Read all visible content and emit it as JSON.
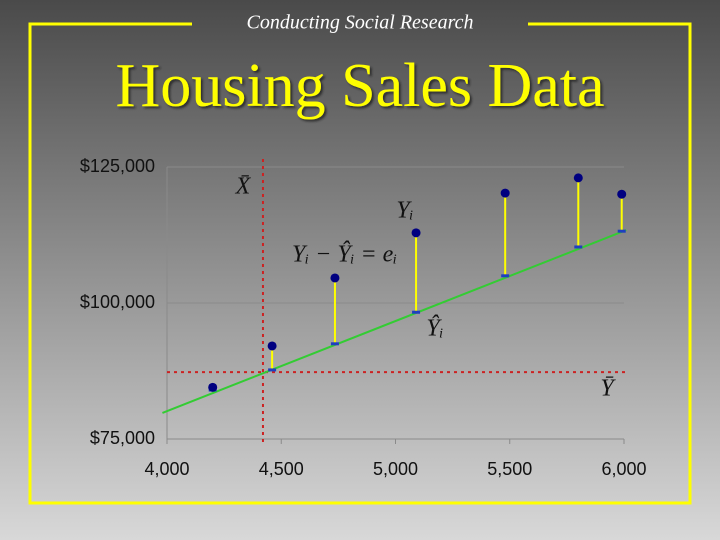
{
  "chart_data": {
    "type": "scatter",
    "subtitle": "Conducting Social Research",
    "title": "Housing Sales Data",
    "x": [
      4200,
      4460,
      4735,
      5090,
      5480,
      5800,
      5990
    ],
    "series": [
      {
        "color": "#000080",
        "values": [
          84500,
          92100,
          104600,
          112900,
          120200,
          123000,
          120000
        ]
      },
      {
        "color": "#1f3fbf",
        "values": [
          84000,
          87700,
          92500,
          98300,
          105000,
          110300,
          113200
        ]
      }
    ],
    "residual_color": "#ffff00",
    "fit_line": {
      "x": [
        3980,
        6010
      ],
      "values": [
        79800,
        113400
      ],
      "color": "#33cc33"
    },
    "mean_x": 4420,
    "mean_y": 87300,
    "mean_color": "#cc2222",
    "annotations": [
      "X̄",
      "Yᵢ",
      "Yᵢ − Ŷᵢ = eᵢ",
      "Ŷᵢ",
      "Ȳ"
    ],
    "xlim": [
      4000,
      6000
    ],
    "ylim": [
      75000,
      125000
    ],
    "xticks": [
      {
        "value": 4000,
        "label": "4,000"
      },
      {
        "value": 4500,
        "label": "4,500"
      },
      {
        "value": 5000,
        "label": "5,000"
      },
      {
        "value": 5500,
        "label": "5,500"
      },
      {
        "value": 6000,
        "label": "6,000"
      }
    ],
    "yticks": [
      {
        "value": 75000,
        "label": "$75,000"
      },
      {
        "value": 100000,
        "label": "$100,000"
      },
      {
        "value": 125000,
        "label": "$125,000"
      }
    ],
    "grid": true
  }
}
